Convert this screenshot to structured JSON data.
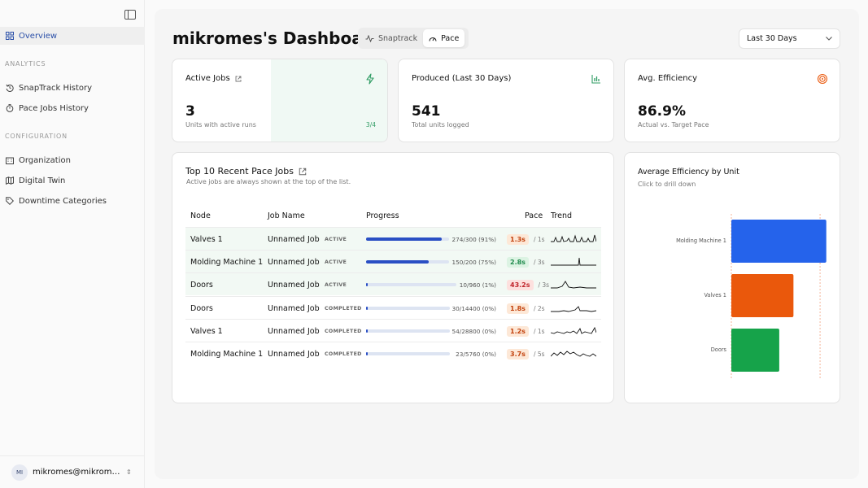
{
  "sidebar": {
    "overview": "Overview",
    "analytics_label": "ANALYTICS",
    "snaptrack_history": "SnapTrack History",
    "pace_jobs_history": "Pace Jobs History",
    "config_label": "CONFIGURATION",
    "organization": "Organization",
    "digital_twin": "Digital Twin",
    "downtime_categories": "Downtime Categories",
    "user_initials": "MI",
    "user_email": "mikromes@mikromes..."
  },
  "header": {
    "title": "mikromes's Dashboard",
    "tab_snaptrack": "Snaptrack",
    "tab_pace": "Pace",
    "range": "Last 30 Days"
  },
  "stats": {
    "active_jobs": {
      "title": "Active Jobs",
      "value": "3",
      "sub": "Units with active runs",
      "ratio": "3/4"
    },
    "produced": {
      "title": "Produced (Last 30 Days)",
      "value": "541",
      "sub": "Total units logged"
    },
    "efficiency": {
      "title": "Avg. Efficiency",
      "value": "86.9%",
      "sub": "Actual vs. Target Pace"
    }
  },
  "jobs": {
    "title": "Top 10 Recent Pace Jobs",
    "subtitle": "Active jobs are always shown at the top of the list.",
    "columns": {
      "node": "Node",
      "job_name": "Job Name",
      "progress": "Progress",
      "pace": "Pace",
      "trend": "Trend"
    },
    "rows": [
      {
        "node": "Valves 1",
        "job": "Unnamed Job",
        "status": "ACTIVE",
        "progress_text": "274/300 (91%)",
        "progress": 0.91,
        "pace": "1.3s",
        "pace_unit": "/ 1s",
        "pace_level": "warn"
      },
      {
        "node": "Molding Machine 1",
        "job": "Unnamed Job",
        "status": "ACTIVE",
        "progress_text": "150/200 (75%)",
        "progress": 0.75,
        "pace": "2.8s",
        "pace_unit": "/ 3s",
        "pace_level": "good"
      },
      {
        "node": "Doors",
        "job": "Unnamed Job",
        "status": "ACTIVE",
        "progress_text": "10/960 (1%)",
        "progress": 0.01,
        "pace": "43.2s",
        "pace_unit": "/ 3s",
        "pace_level": "bad"
      },
      {
        "node": "Doors",
        "job": "Unnamed Job",
        "status": "COMPLETED",
        "progress_text": "30/14400 (0%)",
        "progress": 0.002,
        "pace": "1.8s",
        "pace_unit": "/ 2s",
        "pace_level": "warn"
      },
      {
        "node": "Valves 1",
        "job": "Unnamed Job",
        "status": "COMPLETED",
        "progress_text": "54/28800 (0%)",
        "progress": 0.002,
        "pace": "1.2s",
        "pace_unit": "/ 1s",
        "pace_level": "warn"
      },
      {
        "node": "Molding Machine 1",
        "job": "Unnamed Job",
        "status": "COMPLETED",
        "progress_text": "23/5760 (0%)",
        "progress": 0.004,
        "pace": "3.7s",
        "pace_unit": "/ 5s",
        "pace_level": "warn"
      }
    ]
  },
  "efficiency_chart": {
    "title": "Average Efficiency by Unit",
    "subtitle": "Click to drill down"
  },
  "chart_data": {
    "type": "bar",
    "orientation": "horizontal",
    "categories": [
      "Molding Machine 1",
      "Valves 1",
      "Doors"
    ],
    "values": [
      107,
      70,
      54
    ],
    "colors": [
      "#2563eb",
      "#ea580c",
      "#16a34a"
    ],
    "reference_line": 100,
    "xlim": [
      0,
      110
    ]
  },
  "colors": {
    "accent": "#2a4fa8",
    "active_tint": "#f0f9f4",
    "good": "#2f9c63"
  }
}
